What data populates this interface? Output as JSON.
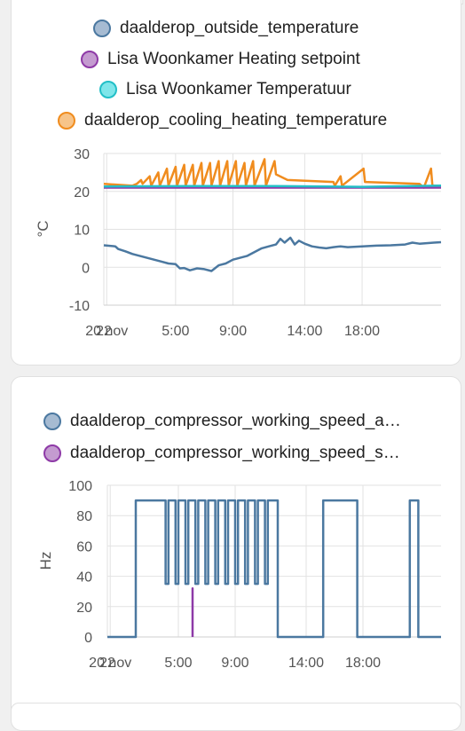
{
  "cards": {
    "temperature": {
      "legend": [
        {
          "label": "daalderop_outside_temperature",
          "fill": "#a6bbd2",
          "stroke": "#4b78a0"
        },
        {
          "label": "Lisa Woonkamer Heating setpoint",
          "fill": "#c49bd0",
          "stroke": "#8e3aa7"
        },
        {
          "label": "Lisa Woonkamer Temperatuur",
          "fill": "#7fe6ea",
          "stroke": "#22bfc7"
        },
        {
          "label": "daalderop_cooling_heating_temperature",
          "fill": "#f7c489",
          "stroke": "#f08c1e"
        }
      ],
      "y_unit": "°C"
    },
    "compressor": {
      "legend": [
        {
          "label": "daalderop_compressor_working_speed_a…",
          "fill": "#a6bbd2",
          "stroke": "#4b78a0"
        },
        {
          "label": "daalderop_compressor_working_speed_s…",
          "fill": "#c49bd0",
          "stroke": "#8e3aa7"
        }
      ],
      "y_unit": "Hz"
    }
  },
  "chart_data": [
    {
      "type": "line",
      "ylabel": "°C",
      "ylim": [
        -10,
        30
      ],
      "yticks": [
        30,
        20,
        10,
        0,
        -10
      ],
      "xlim": [
        0,
        23.5
      ],
      "xticks": [
        {
          "t": 0.0,
          "label": "22"
        },
        {
          "t": 0.2,
          "label": "20 nov"
        },
        {
          "t": 5.0,
          "label": "5:00"
        },
        {
          "t": 9.0,
          "label": "9:00"
        },
        {
          "t": 14.0,
          "label": "14:00"
        },
        {
          "t": 18.0,
          "label": "18:00"
        }
      ],
      "grid": true,
      "series": [
        {
          "name": "daalderop_cooling_heating_temperature",
          "color": "#f08c1e",
          "x": [
            0.0,
            1.9,
            2.0,
            2.3,
            2.6,
            2.7,
            3.2,
            3.3,
            3.8,
            3.9,
            4.4,
            4.5,
            5.0,
            5.1,
            5.6,
            5.7,
            6.2,
            6.3,
            6.8,
            6.9,
            7.4,
            7.5,
            8.0,
            8.1,
            8.6,
            8.7,
            9.2,
            9.3,
            9.8,
            9.9,
            10.4,
            10.5,
            11.2,
            11.3,
            11.9,
            12.0,
            12.8,
            16.0,
            16.1,
            16.5,
            16.6,
            18.1,
            18.2,
            22.0,
            22.3,
            22.8,
            22.9,
            23.5
          ],
          "y": [
            22,
            21.5,
            21.5,
            22,
            23,
            22,
            24,
            21.5,
            25,
            21.5,
            26,
            21.5,
            26.5,
            21.5,
            27,
            21.5,
            27,
            21.5,
            27.5,
            21.5,
            27.5,
            21.5,
            28,
            21.5,
            28,
            21.5,
            28,
            21.5,
            27.5,
            21.5,
            28,
            21.5,
            28.5,
            21.5,
            28,
            24.5,
            23,
            22.5,
            21.5,
            24,
            21.5,
            26,
            22.5,
            22,
            21,
            26,
            21.5,
            21.5
          ]
        },
        {
          "name": "Lisa Woonkamer Heating setpoint",
          "color": "#8e3aa7",
          "x": [
            0.0,
            23.5
          ],
          "y": [
            21,
            21
          ]
        },
        {
          "name": "Lisa Woonkamer Temperatuur",
          "color": "#22bfc7",
          "x": [
            0.0,
            6.0,
            12.0,
            18.0,
            23.5
          ],
          "y": [
            21.3,
            21.4,
            21.4,
            21.2,
            21.5
          ]
        },
        {
          "name": "daalderop_outside_temperature",
          "color": "#4b78a0",
          "x": [
            0.0,
            0.8,
            1.0,
            1.5,
            2.0,
            2.5,
            3.0,
            3.5,
            4.0,
            4.5,
            5.0,
            5.3,
            5.6,
            6.0,
            6.5,
            7.0,
            7.5,
            8.0,
            8.5,
            9.0,
            9.5,
            10.0,
            10.5,
            11.0,
            11.5,
            12.0,
            12.3,
            12.6,
            13.0,
            13.3,
            13.6,
            14.0,
            14.5,
            15.0,
            15.5,
            16.0,
            16.5,
            17.0,
            18.0,
            19.0,
            20.0,
            21.0,
            21.5,
            22.0,
            23.0,
            23.5
          ],
          "y": [
            5.8,
            5.5,
            4.8,
            4.2,
            3.5,
            3.0,
            2.5,
            2.0,
            1.5,
            1.0,
            0.8,
            -0.3,
            -0.2,
            -0.8,
            -0.3,
            -0.5,
            -1.0,
            0.5,
            1.0,
            2.0,
            2.5,
            3.0,
            4.0,
            5.0,
            5.5,
            6.0,
            7.5,
            6.5,
            7.8,
            6.0,
            7.0,
            6.2,
            5.5,
            5.2,
            5.0,
            5.3,
            5.5,
            5.3,
            5.5,
            5.7,
            5.8,
            6.0,
            6.5,
            6.2,
            6.5,
            6.6
          ]
        }
      ]
    },
    {
      "type": "line",
      "ylabel": "Hz",
      "ylim": [
        0,
        100
      ],
      "yticks": [
        100,
        80,
        60,
        40,
        20,
        0
      ],
      "xlim": [
        0,
        23.5
      ],
      "xticks": [
        {
          "t": 0.0,
          "label": "22"
        },
        {
          "t": 0.2,
          "label": "20 nov"
        },
        {
          "t": 5.0,
          "label": "5:00"
        },
        {
          "t": 9.0,
          "label": "9:00"
        },
        {
          "t": 14.0,
          "label": "14:00"
        },
        {
          "t": 18.0,
          "label": "18:00"
        }
      ],
      "grid": true,
      "series": [
        {
          "name": "daalderop_compressor_working_speed_a…",
          "color": "#4b78a0",
          "x": [
            0.0,
            2.0,
            2.0,
            4.1,
            4.1,
            4.3,
            4.3,
            4.8,
            4.8,
            5.0,
            5.0,
            5.5,
            5.5,
            5.7,
            5.7,
            6.2,
            6.2,
            6.4,
            6.4,
            6.9,
            6.9,
            7.1,
            7.1,
            7.6,
            7.6,
            7.8,
            7.8,
            8.3,
            8.3,
            8.5,
            8.5,
            9.0,
            9.0,
            9.2,
            9.2,
            9.7,
            9.7,
            9.9,
            9.9,
            10.4,
            10.4,
            10.6,
            10.6,
            11.1,
            11.1,
            11.3,
            11.3,
            12.0,
            12.0,
            15.2,
            15.2,
            17.6,
            17.6,
            21.3,
            21.3,
            21.9,
            21.9,
            23.5
          ],
          "y": [
            0,
            0,
            90,
            90,
            35,
            35,
            90,
            90,
            35,
            35,
            90,
            90,
            35,
            35,
            90,
            90,
            35,
            35,
            90,
            90,
            35,
            35,
            90,
            90,
            35,
            35,
            90,
            90,
            35,
            35,
            90,
            90,
            35,
            35,
            90,
            90,
            35,
            35,
            90,
            90,
            35,
            35,
            90,
            90,
            35,
            35,
            90,
            90,
            0,
            0,
            90,
            90,
            0,
            0,
            90,
            90,
            0,
            0
          ]
        },
        {
          "name": "daalderop_compressor_working_speed_s…",
          "color": "#8e3aa7",
          "x": [
            6.0,
            6.0,
            6.0
          ],
          "y": [
            0,
            32,
            0
          ]
        }
      ]
    }
  ]
}
